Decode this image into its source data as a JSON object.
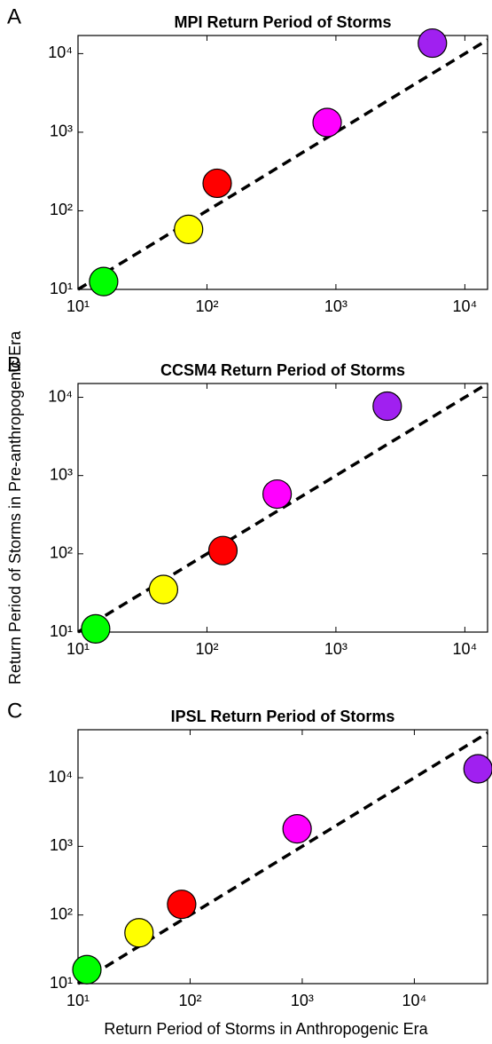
{
  "chart_data": [
    {
      "type": "scatter",
      "panel_label": "A",
      "title": "MPI Return Period of Storms",
      "x": [
        15.8,
        72,
        120,
        855,
        5600
      ],
      "values": [
        12.6,
        58,
        224,
        1330,
        13600
      ],
      "colors": [
        "#00ff00",
        "#ffff00",
        "#ff0000",
        "#ff00ff",
        "#a020f0"
      ],
      "xlim": [
        10,
        15000
      ],
      "ylim": [
        10,
        17000
      ],
      "log_scale": true,
      "identity_line": true,
      "xticks": [
        {
          "value": 10,
          "label": "10¹"
        },
        {
          "value": 100,
          "label": "10²"
        },
        {
          "value": 1000,
          "label": "10³"
        },
        {
          "value": 10000,
          "label": "10⁴"
        }
      ],
      "yticks": [
        {
          "value": 10,
          "label": "10¹"
        },
        {
          "value": 100,
          "label": "10²"
        },
        {
          "value": 1000,
          "label": "10³"
        },
        {
          "value": 10000,
          "label": "10⁴"
        }
      ]
    },
    {
      "type": "scatter",
      "panel_label": "B",
      "title": "CCSM4 Return Period of Storms",
      "y_label": "Return Period of Storms in Pre-anthropogenic Era",
      "x": [
        13.7,
        46,
        133,
        350,
        2500
      ],
      "values": [
        11,
        35,
        110,
        580,
        7700
      ],
      "colors": [
        "#00ff00",
        "#ffff00",
        "#ff0000",
        "#ff00ff",
        "#a020f0"
      ],
      "xlim": [
        10,
        15000
      ],
      "ylim": [
        10,
        15000
      ],
      "log_scale": true,
      "identity_line": true,
      "xticks": [
        {
          "value": 10,
          "label": "10¹"
        },
        {
          "value": 100,
          "label": "10²"
        },
        {
          "value": 1000,
          "label": "10³"
        },
        {
          "value": 10000,
          "label": "10⁴"
        }
      ],
      "yticks": [
        {
          "value": 10,
          "label": "10¹"
        },
        {
          "value": 100,
          "label": "10²"
        },
        {
          "value": 1000,
          "label": "10³"
        },
        {
          "value": 10000,
          "label": "10⁴"
        }
      ]
    },
    {
      "type": "scatter",
      "panel_label": "C",
      "title": "IPSL Return Period of Storms",
      "x_label": "Return Period of Storms in Anthropogenic Era",
      "x": [
        12,
        35,
        84,
        900,
        37000
      ],
      "values": [
        16,
        55,
        143,
        1800,
        13500
      ],
      "colors": [
        "#00ff00",
        "#ffff00",
        "#ff0000",
        "#ff00ff",
        "#a020f0"
      ],
      "xlim": [
        10,
        45000
      ],
      "ylim": [
        10,
        50000
      ],
      "log_scale": true,
      "identity_line": true,
      "xticks": [
        {
          "value": 10,
          "label": "10¹"
        },
        {
          "value": 100,
          "label": "10²"
        },
        {
          "value": 1000,
          "label": "10³"
        },
        {
          "value": 10000,
          "label": "10⁴"
        }
      ],
      "yticks": [
        {
          "value": 10,
          "label": "10¹"
        },
        {
          "value": 100,
          "label": "10²"
        },
        {
          "value": 1000,
          "label": "10³"
        },
        {
          "value": 10000,
          "label": "10⁴"
        }
      ]
    }
  ]
}
